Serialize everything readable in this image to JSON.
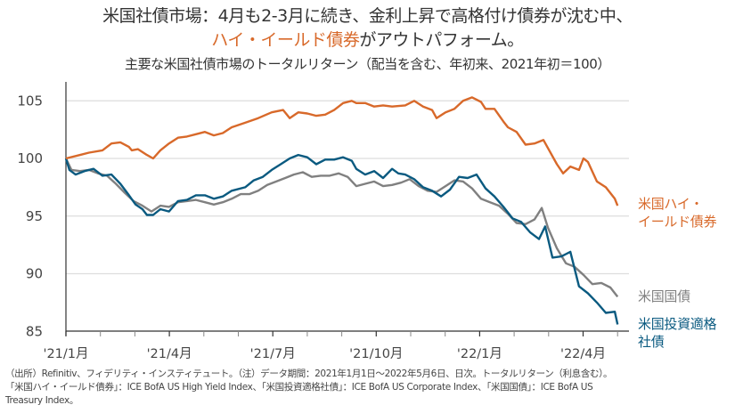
{
  "header": {
    "title_line1": "米国社債市場：4月も2-3月に続き、金利上昇で高格付け債券が沈む中、",
    "title_line2_highlight": "ハイ・イールド債券",
    "title_line2_rest": "がアウトパフォーム。",
    "subtitle": "主要な米国社債市場のトータルリターン（配当を含む、年初来、2021年初＝100）"
  },
  "series_labels": {
    "high_yield_line1": "米国ハイ・",
    "high_yield_line2": "イールド債券",
    "treasury": "米国国債",
    "investment_grade_line1": "米国投資適格",
    "investment_grade_line2": "社債"
  },
  "footnote": {
    "line1": "（出所）Refinitiv、フィデリティ・インスティテュート。（注）データ期間：2021年1月1日～2022年5月6日、日次。トータルリターン（利息含む）。",
    "line2": "「米国ハイ・イールド債券」：ICE BofA US High Yield Index、「米国投資適格社債」：ICE BofA US Corporate Index、「米国国債」：ICE BofA US",
    "line3": "Treasury Index。"
  },
  "colors": {
    "high_yield": "#d8692a",
    "treasury": "#808080",
    "investment_grade": "#0a5a80",
    "grid": "#dddddd",
    "axis": "#333333"
  },
  "chart_data": {
    "type": "line",
    "title": "主要な米国社債市場のトータルリターン（配当を含む、年初来、2021年初＝100）",
    "xlabel": "",
    "ylabel": "",
    "x_unit": "months since 2021/1/1",
    "xlim": [
      0,
      16.5
    ],
    "ylim": [
      85,
      106.5
    ],
    "yticks": [
      85,
      90,
      95,
      100,
      105
    ],
    "ytick_labels": [
      "85",
      "90",
      "95",
      "100",
      "105"
    ],
    "xticks": [
      0,
      3,
      6,
      9,
      12,
      15
    ],
    "xtick_labels": [
      "'21/1月",
      "'21/4月",
      "'21/7月",
      "'21/10月",
      "'22/1月",
      "'22/4月"
    ],
    "minor_xticks": [
      1,
      2,
      4,
      5,
      7,
      8,
      10,
      11,
      13,
      14,
      16
    ],
    "grid": true,
    "legend": "inline-right",
    "series": [
      {
        "name": "米国ハイ・イールド債券",
        "color": "#d8692a",
        "x": [
          0,
          0.41,
          0.67,
          1.06,
          1.32,
          1.58,
          1.83,
          1.91,
          2.09,
          2.35,
          2.53,
          2.74,
          2.99,
          3.25,
          3.51,
          3.77,
          4.03,
          4.29,
          4.55,
          4.81,
          5.2,
          5.58,
          5.97,
          6.3,
          6.49,
          6.74,
          7.0,
          7.26,
          7.52,
          7.78,
          8.04,
          8.29,
          8.42,
          8.68,
          8.94,
          9.2,
          9.46,
          9.84,
          10.1,
          10.36,
          10.62,
          10.75,
          11.01,
          11.27,
          11.52,
          11.78,
          12.04,
          12.17,
          12.43,
          12.69,
          12.82,
          13.07,
          13.33,
          13.59,
          13.85,
          13.98,
          14.24,
          14.42,
          14.63,
          14.88,
          15.01,
          15.14,
          15.4,
          15.66,
          15.92,
          16.0
        ],
        "values": [
          100,
          100.3,
          100.5,
          100.7,
          101.3,
          101.4,
          101.0,
          100.7,
          100.8,
          100.3,
          100.0,
          100.7,
          101.3,
          101.8,
          101.9,
          102.1,
          102.3,
          102.0,
          102.2,
          102.7,
          103.1,
          103.5,
          104.0,
          104.2,
          103.5,
          104.0,
          103.9,
          103.7,
          103.8,
          104.2,
          104.8,
          105.0,
          104.8,
          104.8,
          104.5,
          104.6,
          104.5,
          104.6,
          105.0,
          104.5,
          104.2,
          103.5,
          104.0,
          104.3,
          105.0,
          105.3,
          104.9,
          104.3,
          104.3,
          103.2,
          102.7,
          102.3,
          101.2,
          101.3,
          101.6,
          100.9,
          99.5,
          98.7,
          99.3,
          99.0,
          100.0,
          99.7,
          98.0,
          97.5,
          96.5,
          95.9
        ]
      },
      {
        "name": "米国国債",
        "color": "#808080",
        "x": [
          0,
          0.16,
          0.41,
          0.67,
          0.93,
          1.19,
          1.45,
          1.71,
          1.96,
          2.22,
          2.48,
          2.74,
          2.99,
          3.25,
          3.51,
          3.77,
          4.03,
          4.29,
          4.55,
          4.81,
          5.07,
          5.32,
          5.58,
          5.84,
          6.1,
          6.36,
          6.61,
          6.87,
          7.13,
          7.39,
          7.65,
          7.91,
          8.17,
          8.42,
          8.68,
          8.94,
          9.2,
          9.46,
          9.72,
          9.97,
          10.23,
          10.49,
          10.75,
          11.01,
          11.27,
          11.52,
          11.78,
          12.04,
          12.3,
          12.56,
          12.82,
          13.07,
          13.33,
          13.59,
          13.8,
          13.98,
          14.24,
          14.5,
          14.75,
          15.01,
          15.27,
          15.53,
          15.79,
          16.0
        ],
        "values": [
          100,
          99.0,
          98.9,
          99.0,
          98.7,
          98.5,
          97.8,
          97.0,
          96.3,
          95.9,
          95.4,
          95.9,
          95.8,
          96.2,
          96.3,
          96.4,
          96.2,
          96.0,
          96.2,
          96.5,
          96.9,
          96.9,
          97.2,
          97.7,
          98.0,
          98.3,
          98.6,
          98.8,
          98.4,
          98.5,
          98.5,
          98.7,
          98.4,
          97.6,
          97.8,
          98.0,
          97.6,
          97.7,
          97.9,
          98.2,
          97.6,
          97.2,
          97.1,
          97.6,
          98.1,
          98.0,
          97.4,
          96.5,
          96.2,
          95.9,
          95.2,
          94.4,
          94.3,
          94.7,
          95.7,
          94.0,
          92.2,
          90.9,
          90.6,
          89.9,
          89.1,
          89.2,
          88.8,
          88.0
        ]
      },
      {
        "name": "米国投資適格社債",
        "color": "#0a5a80",
        "x": [
          0,
          0.1,
          0.28,
          0.54,
          0.8,
          1.06,
          1.32,
          1.58,
          1.83,
          2.02,
          2.22,
          2.35,
          2.53,
          2.74,
          2.99,
          3.25,
          3.51,
          3.77,
          4.03,
          4.29,
          4.55,
          4.81,
          5.2,
          5.45,
          5.71,
          5.97,
          6.23,
          6.49,
          6.74,
          7.0,
          7.26,
          7.52,
          7.78,
          8.04,
          8.29,
          8.42,
          8.68,
          8.94,
          9.2,
          9.46,
          9.64,
          9.84,
          10.1,
          10.36,
          10.62,
          10.88,
          11.14,
          11.4,
          11.65,
          11.91,
          12.17,
          12.43,
          12.69,
          12.95,
          13.2,
          13.46,
          13.72,
          13.9,
          14.11,
          14.37,
          14.63,
          14.88,
          15.14,
          15.4,
          15.66,
          15.92,
          16.0
        ],
        "values": [
          100,
          99.0,
          98.6,
          98.9,
          99.1,
          98.5,
          98.6,
          97.8,
          96.8,
          96.0,
          95.6,
          95.1,
          95.1,
          95.6,
          95.4,
          96.3,
          96.4,
          96.8,
          96.8,
          96.5,
          96.7,
          97.2,
          97.5,
          98.1,
          98.4,
          99.0,
          99.5,
          100.0,
          100.3,
          100.1,
          99.5,
          99.9,
          99.9,
          100.1,
          99.8,
          99.1,
          98.6,
          98.9,
          98.3,
          99.1,
          98.7,
          98.6,
          98.2,
          97.5,
          97.2,
          96.7,
          97.3,
          98.4,
          98.3,
          98.6,
          97.4,
          96.7,
          95.8,
          94.8,
          94.5,
          93.6,
          93.0,
          94.1,
          91.4,
          91.5,
          91.9,
          88.9,
          88.3,
          87.5,
          86.6,
          86.7,
          85.6
        ]
      }
    ]
  }
}
